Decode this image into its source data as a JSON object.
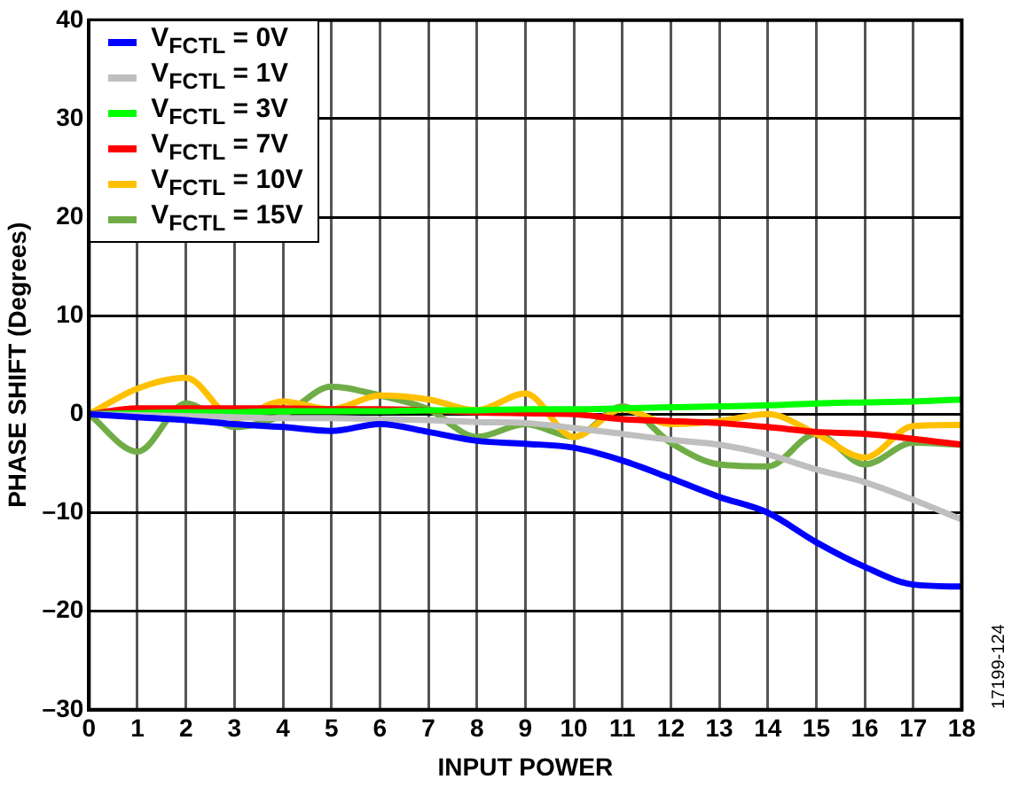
{
  "chart_data": {
    "type": "line",
    "xlabel": "INPUT POWER",
    "ylabel": "PHASE SHIFT (Degrees)",
    "x": [
      0,
      1,
      2,
      3,
      4,
      5,
      6,
      7,
      8,
      9,
      10,
      11,
      12,
      13,
      14,
      15,
      16,
      17,
      18
    ],
    "xlim": [
      0,
      18
    ],
    "xticks": [
      0,
      1,
      2,
      3,
      4,
      5,
      6,
      7,
      8,
      9,
      10,
      11,
      12,
      13,
      14,
      15,
      16,
      17,
      18
    ],
    "ylim": [
      -30,
      40
    ],
    "yticks": [
      {
        "value": -30,
        "label": "–30"
      },
      {
        "value": -20,
        "label": "–20"
      },
      {
        "value": -10,
        "label": "–10"
      },
      0,
      10,
      20,
      30,
      40
    ],
    "grid": true,
    "legend": "top left",
    "marker": "none",
    "line_style": "solid",
    "annotations": [
      "17199-124"
    ],
    "series": [
      {
        "name": "V$_{FCTL}$ = 0V",
        "color": "#0000ff",
        "values": [
          0,
          -0.3,
          -0.6,
          -1,
          -1.3,
          -1.7,
          -1,
          -1.8,
          -2.7,
          -3,
          -3.4,
          -4.7,
          -6.5,
          -8.4,
          -10,
          -13,
          -15.5,
          -17.3,
          -17.5
        ]
      },
      {
        "name": "V$_{FCTL}$ = 1V",
        "color": "#bfbfbf",
        "values": [
          0,
          -0.1,
          -0.2,
          -0.3,
          -0.4,
          -0.4,
          -0.5,
          -0.6,
          -0.8,
          -0.9,
          -1.4,
          -2,
          -2.6,
          -3.1,
          -4.1,
          -5.6,
          -6.9,
          -8.7,
          -10.7
        ]
      },
      {
        "name": "V$_{FCTL}$ = 3V",
        "color": "#00ff00",
        "values": [
          0,
          0.1,
          0.2,
          0.2,
          0.3,
          0.3,
          0.3,
          0.4,
          0.4,
          0.5,
          0.5,
          0.6,
          0.7,
          0.8,
          0.9,
          1.1,
          1.2,
          1.3,
          1.5
        ]
      },
      {
        "name": "V$_{FCTL}$ = 7V",
        "color": "#ff0000",
        "values": [
          0,
          0.6,
          0.6,
          0.6,
          0.6,
          0.5,
          0.5,
          0.4,
          0.2,
          0.1,
          0,
          -0.5,
          -0.7,
          -0.9,
          -1.3,
          -1.8,
          -2,
          -2.5,
          -3.1
        ]
      },
      {
        "name": "V$_{FCTL}$ = 10V",
        "color": "#ffc000",
        "values": [
          0,
          2.6,
          3.7,
          -0.4,
          1.3,
          0.5,
          1.9,
          1.5,
          0.4,
          2.1,
          -2.3,
          0.5,
          -1,
          -0.7,
          0,
          -2,
          -4.4,
          -1.2,
          -1.1
        ]
      },
      {
        "name": "V$_{FCTL}$ = 15V",
        "color": "#70ad47",
        "values": [
          0,
          -3.8,
          1.1,
          -1.3,
          -0.1,
          2.8,
          1.9,
          0.5,
          -2.3,
          -1,
          -2.3,
          0.8,
          -2.9,
          -5.1,
          -5.3,
          -2,
          -5.1,
          -2.9,
          -3.1
        ]
      }
    ]
  }
}
